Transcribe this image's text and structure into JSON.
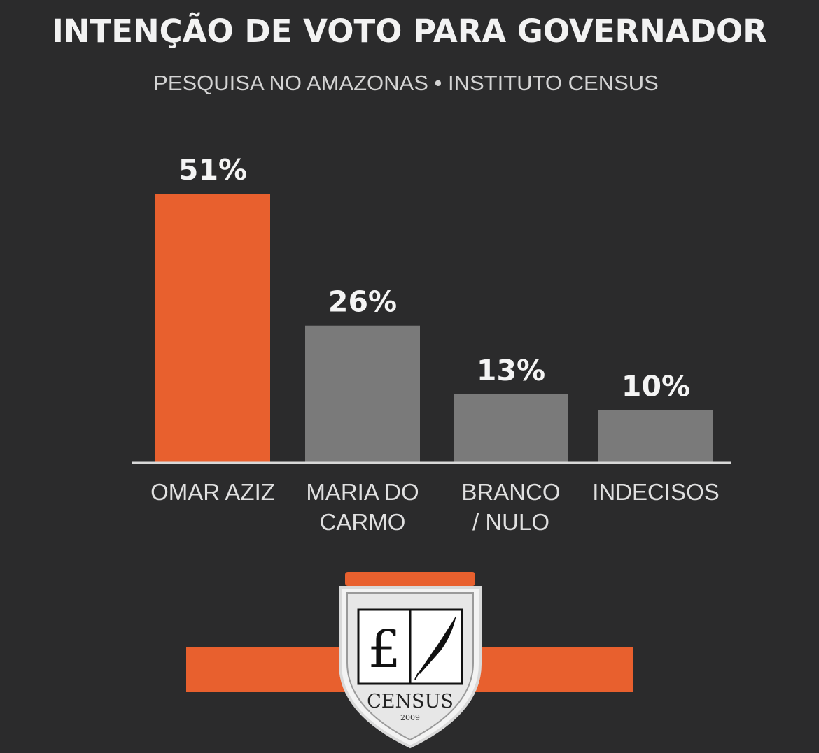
{
  "header": {
    "title": "INTENÇÃO DE VOTO PARA GOVERNADOR",
    "subtitle": "PESQUISA NO AMAZONAS • INSTITUTO CENSUS"
  },
  "colors": {
    "background": "#2b2b2c",
    "highlight": "#e8602e",
    "neutral": "#7a7a7a",
    "axis": "#d8d8d8"
  },
  "chart_data": {
    "type": "bar",
    "categories": [
      [
        "OMAR AZIZ"
      ],
      [
        "MARIA DO",
        "CARMO"
      ],
      [
        "BRANCO",
        "/ NULO"
      ],
      [
        "INDECISOS"
      ]
    ],
    "values": [
      51,
      26,
      13,
      10
    ],
    "value_labels": [
      "51%",
      "26%",
      "13%",
      "10%"
    ],
    "unit": "%",
    "highlight_index": 0,
    "ylim": [
      0,
      51
    ],
    "grid": false,
    "legend": "none"
  },
  "logo": {
    "name": "CENSUS",
    "year": "2009",
    "icon": "open-book-with-quill-icon"
  }
}
